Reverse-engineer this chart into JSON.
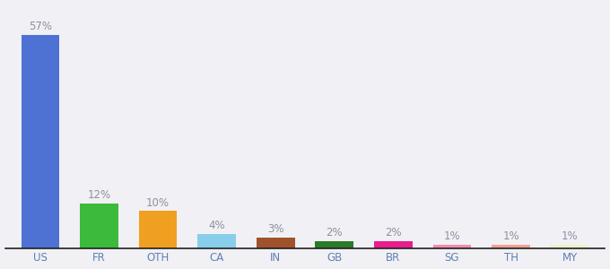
{
  "categories": [
    "US",
    "FR",
    "OTH",
    "CA",
    "IN",
    "GB",
    "BR",
    "SG",
    "TH",
    "MY"
  ],
  "values": [
    57,
    12,
    10,
    4,
    3,
    2,
    2,
    1,
    1,
    1
  ],
  "bar_colors": [
    "#4d72d4",
    "#3cba3c",
    "#f0a020",
    "#87ceeb",
    "#a0522d",
    "#2a7a2a",
    "#e91e8c",
    "#f48aaa",
    "#f4a090",
    "#f0eec8"
  ],
  "labels": [
    "57%",
    "12%",
    "10%",
    "4%",
    "3%",
    "2%",
    "2%",
    "1%",
    "1%",
    "1%"
  ],
  "ylim": [
    0,
    65
  ],
  "background_color": "#f0f0f5",
  "label_color": "#9090a0",
  "label_fontsize": 8.5,
  "tick_color": "#6080b0",
  "tick_fontsize": 8.5,
  "spine_color": "#202020"
}
